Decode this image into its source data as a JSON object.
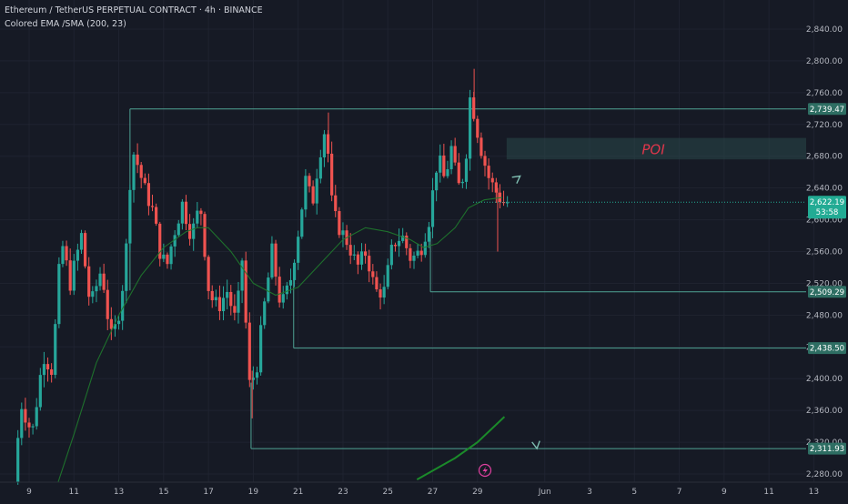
{
  "chart_data": {
    "type": "candlestick",
    "symbol_line": "Ethereum / TetherUS PERPETUAL CONTRACT · 4h · BINANCE",
    "indicator_line": "Colored EMA /SMA (200, 23)",
    "y_ticks": [
      "2,840.00",
      "2,800.00",
      "2,760.00",
      "2,720.00",
      "2,680.00",
      "2,640.00",
      "2,600.00",
      "2,560.00",
      "2,520.00",
      "2,480.00",
      "2,440.00",
      "2,400.00",
      "2,360.00",
      "2,320.00",
      "2,280.00"
    ],
    "ylim": [
      2270,
      2860
    ],
    "x_ticks": [
      {
        "label": "9",
        "day": 9
      },
      {
        "label": "11",
        "day": 11
      },
      {
        "label": "13",
        "day": 13
      },
      {
        "label": "15",
        "day": 15
      },
      {
        "label": "17",
        "day": 17
      },
      {
        "label": "19",
        "day": 19
      },
      {
        "label": "21",
        "day": 21
      },
      {
        "label": "23",
        "day": 23
      },
      {
        "label": "25",
        "day": 25
      },
      {
        "label": "27",
        "day": 27
      },
      {
        "label": "29",
        "day": 29
      },
      {
        "label": "Jun",
        "day": 32
      },
      {
        "label": "3",
        "day": 34
      },
      {
        "label": "5",
        "day": 36
      },
      {
        "label": "7",
        "day": 38
      },
      {
        "label": "9",
        "day": 40
      },
      {
        "label": "11",
        "day": 42
      },
      {
        "label": "13",
        "day": 44
      }
    ],
    "xlim": [
      8.6,
      45.5
    ],
    "last_price": {
      "value": 2622.19,
      "label": "2,622.19",
      "countdown": "53:58",
      "color": "#22ab94"
    },
    "levels": [
      {
        "value": 2739.47,
        "label": "2,739.47",
        "from_day": 13.5
      },
      {
        "value": 2509.29,
        "label": "2,509.29",
        "from_day": 26.9
      },
      {
        "value": 2438.5,
        "label": "2,438.50",
        "from_day": 20.8
      },
      {
        "value": 2311.93,
        "label": "2,311.93",
        "from_day": 18.9
      }
    ],
    "poi_zone": {
      "top": 2703,
      "bottom": 2676,
      "from_day": 30.3,
      "label": "POI"
    },
    "projection_path": [
      {
        "day": 30.9,
        "price": 2655
      },
      {
        "day": 29.95,
        "price": 2635
      },
      {
        "day": 31.65,
        "price": 2312
      }
    ],
    "colors": {
      "up": "#26a69a",
      "down": "#ef5350",
      "level": "#4fa394",
      "poi_text": "#e0364b",
      "projection": "#7fbfb2",
      "ema": "#1f7a2e",
      "bg": "#161a25",
      "grid": "#1f2330",
      "axis_text": "#b2b5be"
    },
    "key_points": [
      [
        8.5,
        2270
      ],
      [
        8.8,
        2370
      ],
      [
        9.3,
        2330
      ],
      [
        9.8,
        2430
      ],
      [
        10.2,
        2410
      ],
      [
        10.6,
        2575
      ],
      [
        11.0,
        2520
      ],
      [
        11.5,
        2580
      ],
      [
        11.9,
        2490
      ],
      [
        12.4,
        2540
      ],
      [
        12.8,
        2450
      ],
      [
        13.1,
        2470
      ],
      [
        13.45,
        2540
      ],
      [
        13.75,
        2690
      ],
      [
        14.0,
        2670
      ],
      [
        14.3,
        2640
      ],
      [
        14.7,
        2610
      ],
      [
        15.0,
        2560
      ],
      [
        15.3,
        2540
      ],
      [
        15.6,
        2580
      ],
      [
        16.0,
        2620
      ],
      [
        16.4,
        2580
      ],
      [
        16.8,
        2620
      ],
      [
        17.2,
        2505
      ],
      [
        17.6,
        2490
      ],
      [
        18.0,
        2510
      ],
      [
        18.4,
        2470
      ],
      [
        18.7,
        2560
      ],
      [
        18.95,
        2390
      ],
      [
        19.3,
        2410
      ],
      [
        19.6,
        2480
      ],
      [
        20.0,
        2560
      ],
      [
        20.4,
        2490
      ],
      [
        20.8,
        2520
      ],
      [
        21.2,
        2590
      ],
      [
        21.5,
        2650
      ],
      [
        21.8,
        2620
      ],
      [
        22.1,
        2680
      ],
      [
        22.4,
        2720
      ],
      [
        22.7,
        2610
      ],
      [
        23.0,
        2590
      ],
      [
        23.4,
        2570
      ],
      [
        23.8,
        2540
      ],
      [
        24.2,
        2560
      ],
      [
        24.6,
        2510
      ],
      [
        25.0,
        2510
      ],
      [
        25.4,
        2570
      ],
      [
        25.8,
        2580
      ],
      [
        26.2,
        2550
      ],
      [
        26.6,
        2560
      ],
      [
        27.0,
        2600
      ],
      [
        27.4,
        2680
      ],
      [
        27.7,
        2650
      ],
      [
        28.0,
        2690
      ],
      [
        28.3,
        2640
      ],
      [
        28.6,
        2660
      ],
      [
        28.85,
        2760
      ],
      [
        29.1,
        2720
      ],
      [
        29.4,
        2680
      ],
      [
        29.7,
        2650
      ],
      [
        30.0,
        2635
      ],
      [
        30.3,
        2622
      ]
    ],
    "ema_points": [
      [
        10.3,
        2270
      ],
      [
        11.0,
        2330
      ],
      [
        12.0,
        2420
      ],
      [
        13.0,
        2480
      ],
      [
        14.0,
        2530
      ],
      [
        15.0,
        2565
      ],
      [
        16.0,
        2585
      ],
      [
        16.5,
        2590
      ],
      [
        17.0,
        2590
      ],
      [
        18.0,
        2560
      ],
      [
        19.0,
        2520
      ],
      [
        20.0,
        2505
      ],
      [
        21.0,
        2515
      ],
      [
        22.0,
        2545
      ],
      [
        23.0,
        2575
      ],
      [
        24.0,
        2590
      ],
      [
        25.0,
        2585
      ],
      [
        26.0,
        2575
      ],
      [
        26.6,
        2565
      ],
      [
        27.2,
        2570
      ],
      [
        28.0,
        2590
      ],
      [
        28.6,
        2615
      ],
      [
        29.3,
        2625
      ],
      [
        30.1,
        2628
      ]
    ],
    "ema_long_points": [
      [
        26.3,
        2273
      ],
      [
        28.0,
        2300
      ],
      [
        29.0,
        2320
      ],
      [
        30.2,
        2352
      ]
    ]
  }
}
